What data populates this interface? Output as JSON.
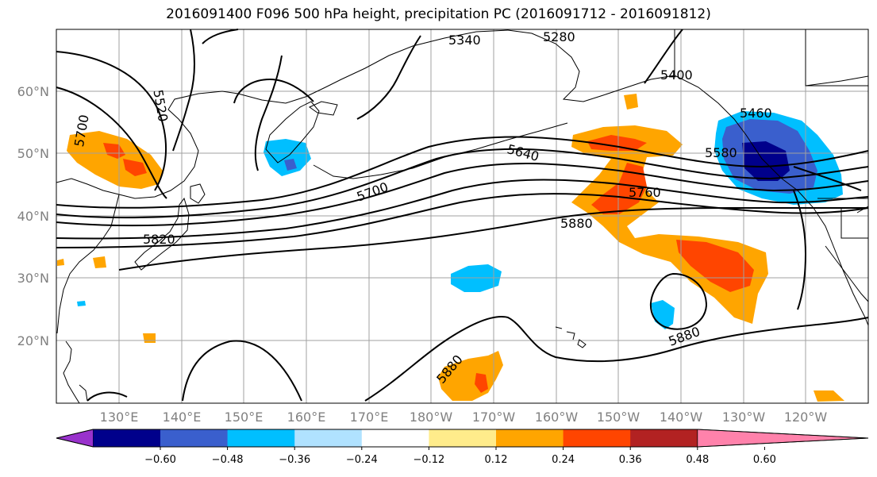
{
  "title": "2016091400 F096 500 hPa height, precipitation PC (2016091712 - 2016091812)",
  "lat_labels": [
    "60°N",
    "50°N",
    "40°N",
    "30°N",
    "20°N"
  ],
  "lon_labels": [
    "130°E",
    "140°E",
    "150°E",
    "160°E",
    "170°E",
    "180°W",
    "170°W",
    "160°W",
    "150°W",
    "140°W",
    "130°W",
    "120°W"
  ],
  "contour_labels": [
    "5280",
    "5340",
    "5400",
    "5460",
    "5520",
    "5580",
    "5640",
    "5700",
    "5700",
    "5760",
    "5820",
    "5880",
    "5880",
    "5880"
  ],
  "colorbar": {
    "ticks": [
      "−0.60",
      "−0.48",
      "−0.36",
      "−0.24",
      "−0.12",
      "0.12",
      "0.24",
      "0.36",
      "0.48",
      "0.60"
    ],
    "colors": [
      "#9932cc",
      "#00008b",
      "#3a5fcd",
      "#00bfff",
      "#b0e2ff",
      "#ffffff",
      "#ffec8b",
      "#ffa500",
      "#ff4500",
      "#b22222",
      "#ff82ab"
    ]
  },
  "colors": {
    "coast": "#000000",
    "contour": "#000000",
    "grid": "#a0a0a0"
  }
}
